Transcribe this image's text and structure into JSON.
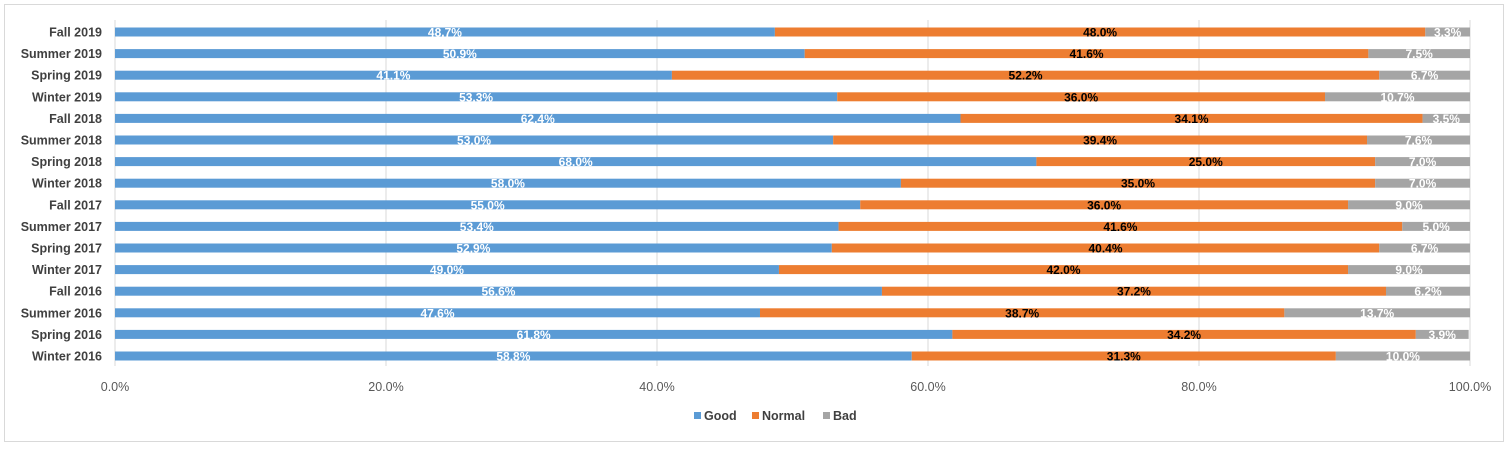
{
  "chart_data": {
    "type": "bar",
    "orientation": "horizontal",
    "stacked": "percent",
    "categories": [
      "Fall 2019",
      "Summer 2019",
      "Spring 2019",
      "Winter 2019",
      "Fall 2018",
      "Summer 2018",
      "Spring 2018",
      "Winter 2018",
      "Fall 2017",
      "Summer 2017",
      "Spring 2017",
      "Winter 2017",
      "Fall 2016",
      "Summer 2016",
      "Spring 2016",
      "Winter 2016"
    ],
    "series": [
      {
        "name": "Good",
        "color": "#5b9bd5",
        "label_color": "#ffffff",
        "values": [
          48.7,
          50.9,
          41.1,
          53.3,
          62.4,
          53.0,
          68.0,
          58.0,
          55.0,
          53.4,
          52.9,
          49.0,
          56.6,
          47.6,
          61.8,
          58.8
        ]
      },
      {
        "name": "Normal",
        "color": "#ed7d31",
        "label_color": "#000000",
        "values": [
          48.0,
          41.6,
          52.2,
          36.0,
          34.1,
          39.4,
          25.0,
          35.0,
          36.0,
          41.6,
          40.4,
          42.0,
          37.2,
          38.7,
          34.2,
          31.3
        ]
      },
      {
        "name": "Bad",
        "color": "#a5a5a5",
        "label_color": "#ffffff",
        "values": [
          3.3,
          7.5,
          6.7,
          10.7,
          3.5,
          7.6,
          7.0,
          7.0,
          9.0,
          5.0,
          6.7,
          9.0,
          6.2,
          13.7,
          3.9,
          10.0
        ]
      }
    ],
    "data_labels": [
      [
        "48.7%",
        "48.0%",
        "3.3%"
      ],
      [
        "50.9%",
        "41.6%",
        "7.5%"
      ],
      [
        "41.1%",
        "52.2%",
        "6.7%"
      ],
      [
        "53.3%",
        "36.0%",
        "10.7%"
      ],
      [
        "62.4%",
        "34.1%",
        "3.5%"
      ],
      [
        "53.0%",
        "39.4%",
        "7.6%"
      ],
      [
        "68.0%",
        "25.0%",
        "7.0%"
      ],
      [
        "58.0%",
        "35.0%",
        "7.0%"
      ],
      [
        "55.0%",
        "36.0%",
        "9.0%"
      ],
      [
        "53.4%",
        "41.6%",
        "5.0%"
      ],
      [
        "52.9%",
        "40.4%",
        "6.7%"
      ],
      [
        "49.0%",
        "42.0%",
        "9.0%"
      ],
      [
        "56.6%",
        "37.2%",
        "6.2%"
      ],
      [
        "47.6%",
        "38.7%",
        "13.7%"
      ],
      [
        "61.8%",
        "34.2%",
        "3.9%"
      ],
      [
        "58.8%",
        "31.3%",
        "10.0%"
      ]
    ],
    "x_ticks": [
      "0.0%",
      "20.0%",
      "40.0%",
      "60.0%",
      "80.0%",
      "100.0%"
    ],
    "x_tick_values": [
      0,
      20,
      40,
      60,
      80,
      100
    ],
    "xlim": [
      0,
      100
    ],
    "grid": "vertical",
    "legend_position": "bottom",
    "title": "",
    "xlabel": "",
    "ylabel": ""
  }
}
